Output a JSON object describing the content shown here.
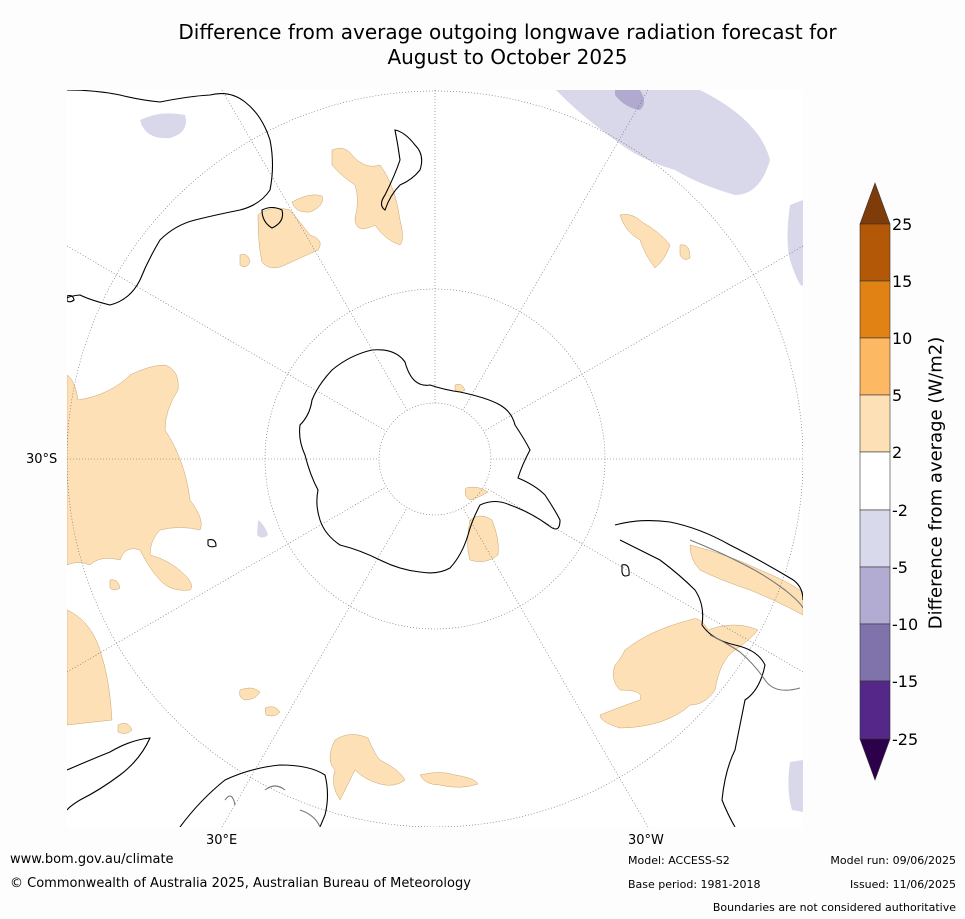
{
  "title": {
    "line1": "Difference from average outgoing longwave radiation forecast for",
    "line2": "August to October 2025"
  },
  "map": {
    "projection": "south-polar",
    "grid_labels": {
      "lat_left": "30°S",
      "lon_bottom_left": "30°E",
      "lon_bottom_right": "30°W"
    },
    "colors": {
      "land_outline": "#000000",
      "ocean": "#ffffff",
      "positive_2_5": "#fde0b6",
      "negative_2_5": "#d8d8ea",
      "negative_5_10": "#b1a9d0"
    }
  },
  "colorbar": {
    "label": "Difference from average (W/m2)",
    "ticks": [
      "25",
      "15",
      "10",
      "5",
      "2",
      "-2",
      "-5",
      "-10",
      "-15",
      "-25"
    ],
    "colors": {
      "over": "#7f3b08",
      "15_25": "#b35806",
      "10_15": "#e08214",
      "5_10": "#fdb863",
      "2_5": "#fee0b6",
      "-2_2": "#ffffff",
      "-5_-2": "#d8daeb",
      "-10_-5": "#b2abd2",
      "-15_-10": "#8073ac",
      "-25_-15": "#542788",
      "under": "#2d004b"
    }
  },
  "footer": {
    "website": "www.bom.gov.au/climate",
    "copyright": "© Commonwealth of Australia 2025, Australian Bureau of Meteorology",
    "model": "Model: ACCESS-S2",
    "base_period": "Base period: 1981-2018",
    "model_run": "Model run: 09/06/2025",
    "issued": "Issued: 11/06/2025",
    "disclaimer": "Boundaries are not considered authoritative"
  }
}
